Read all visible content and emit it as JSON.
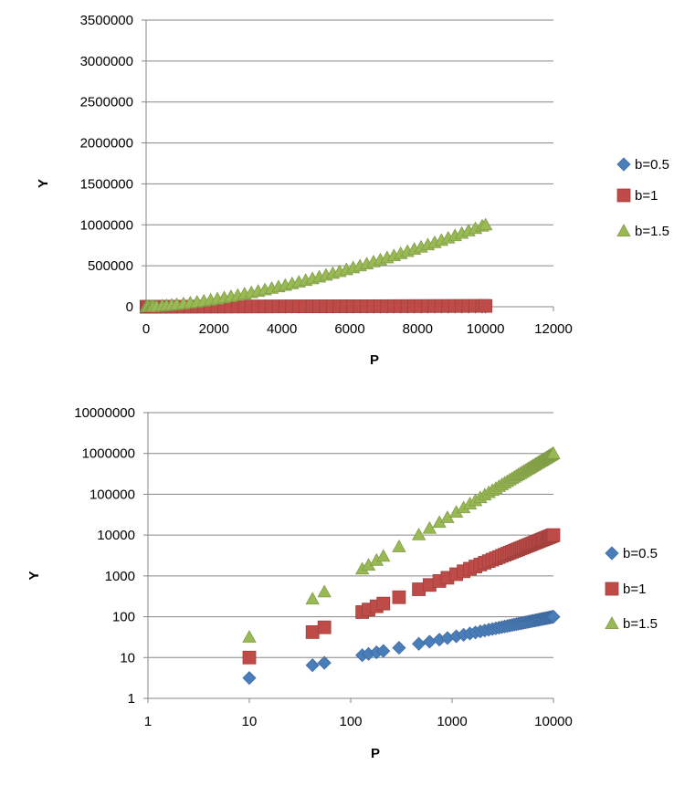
{
  "chart_data": [
    {
      "type": "scatter",
      "xlabel": "P",
      "ylabel": "Y",
      "xlim": [
        0,
        12000
      ],
      "ylim": [
        0,
        3500000
      ],
      "x_ticks": [
        0,
        2000,
        4000,
        6000,
        8000,
        10000,
        12000
      ],
      "y_ticks": [
        0,
        500000,
        1000000,
        1500000,
        2000000,
        2500000,
        3000000,
        3500000
      ],
      "x_tick_labels": [
        "0",
        "2000",
        "4000",
        "6000",
        "8000",
        "10000",
        "12000"
      ],
      "y_tick_labels": [
        "0",
        "500000",
        "1000000",
        "1500000",
        "2000000",
        "2500000",
        "3000000",
        "3500000"
      ],
      "grid": true,
      "legend_position": "right",
      "series": [
        {
          "name": "b=0.5",
          "exponent": 0.5,
          "marker": "diamond",
          "color": "#4a7ebb"
        },
        {
          "name": "b=1",
          "exponent": 1.0,
          "marker": "square",
          "color": "#be4b48"
        },
        {
          "name": "b=1.5",
          "exponent": 1.5,
          "marker": "triangle",
          "color": "#98b954"
        }
      ],
      "p_values": [
        10,
        42,
        55,
        130,
        150,
        180,
        210,
        300,
        470,
        600,
        750,
        900,
        1100,
        1300,
        1500,
        1700,
        1900,
        2100,
        2300,
        2500,
        2700,
        2900,
        3100,
        3300,
        3500,
        3700,
        3900,
        4100,
        4300,
        4500,
        4700,
        4900,
        5100,
        5300,
        5500,
        5700,
        5900,
        6100,
        6300,
        6500,
        6700,
        6900,
        7100,
        7300,
        7500,
        7700,
        7900,
        8100,
        8300,
        8500,
        8700,
        8900,
        9100,
        9300,
        9500,
        9700,
        9900,
        10000
      ]
    },
    {
      "type": "scatter",
      "xlabel": "P",
      "ylabel": "Y",
      "x_scale": "log",
      "y_scale": "log",
      "xlim": [
        1,
        10000
      ],
      "ylim": [
        1,
        10000000
      ],
      "x_ticks": [
        1,
        10,
        100,
        1000,
        10000
      ],
      "y_ticks": [
        1,
        10,
        100,
        1000,
        10000,
        100000,
        1000000,
        10000000
      ],
      "x_tick_labels": [
        "1",
        "10",
        "100",
        "1000",
        "10000"
      ],
      "y_tick_labels": [
        "1",
        "10",
        "100",
        "1000",
        "10000",
        "100000",
        "1000000",
        "10000000"
      ],
      "grid": true,
      "legend_position": "right",
      "series": [
        {
          "name": "b=0.5",
          "exponent": 0.5,
          "marker": "diamond",
          "color": "#4a7ebb"
        },
        {
          "name": "b=1",
          "exponent": 1.0,
          "marker": "square",
          "color": "#be4b48"
        },
        {
          "name": "b=1.5",
          "exponent": 1.5,
          "marker": "triangle",
          "color": "#98b954"
        }
      ],
      "p_values": [
        10,
        42,
        55,
        130,
        150,
        180,
        210,
        300,
        470,
        600,
        750,
        900,
        1100,
        1300,
        1500,
        1700,
        1900,
        2100,
        2300,
        2500,
        2700,
        2900,
        3100,
        3300,
        3500,
        3700,
        3900,
        4100,
        4300,
        4500,
        4700,
        4900,
        5100,
        5300,
        5500,
        5700,
        5900,
        6100,
        6300,
        6500,
        6700,
        6900,
        7100,
        7300,
        7500,
        7700,
        7900,
        8100,
        8300,
        8500,
        8700,
        8900,
        9100,
        9300,
        9500,
        9700,
        9900,
        10000
      ]
    }
  ]
}
